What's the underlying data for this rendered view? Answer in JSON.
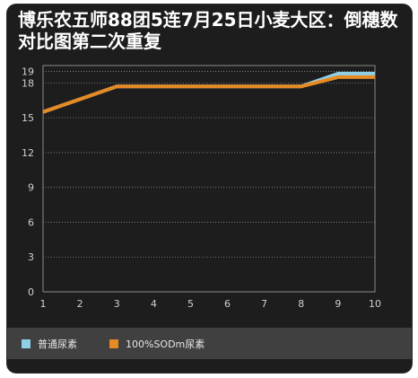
{
  "chart_data": {
    "type": "line",
    "title": "博乐农五师88团5连7月25日小麦大区：倒穗数对比图第二次重复",
    "x": [
      1,
      2,
      3,
      4,
      5,
      6,
      7,
      8,
      9,
      10
    ],
    "xlim": [
      1,
      10
    ],
    "ylim": [
      0,
      19.5
    ],
    "yticks": [
      0,
      3,
      6,
      9,
      12,
      15,
      18,
      19
    ],
    "xticks": [
      1,
      2,
      3,
      4,
      5,
      6,
      7,
      8,
      9,
      10
    ],
    "grid": true,
    "legend_position": "bottom",
    "series": [
      {
        "name": "普通尿素",
        "color": "#8fd0e8",
        "values": [
          15.5,
          16.6,
          17.7,
          17.7,
          17.7,
          17.7,
          17.7,
          17.7,
          18.8,
          18.8
        ]
      },
      {
        "name": "100%SODm尿素",
        "color": "#e68a24",
        "values": [
          15.5,
          16.6,
          17.7,
          17.7,
          17.7,
          17.7,
          17.7,
          17.7,
          18.5,
          18.5
        ]
      }
    ]
  }
}
